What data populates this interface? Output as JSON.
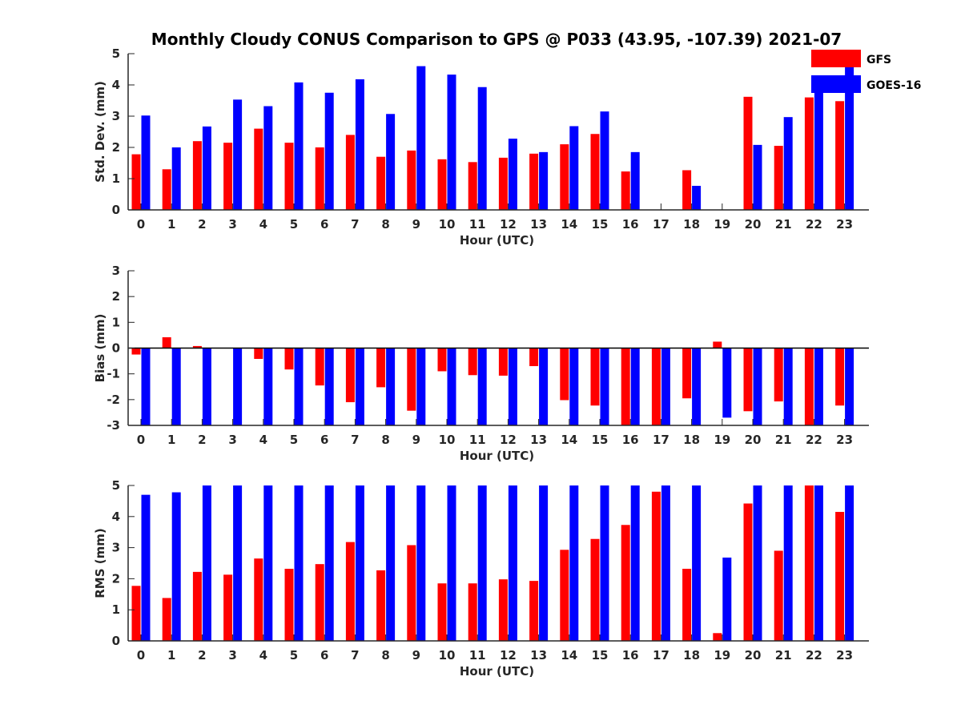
{
  "title": "Monthly Cloudy CONUS Comparison to GPS @ P033 (43.95, -107.39) 2021-07",
  "colors": {
    "GFS": "#ff0000",
    "GOES-16": "#0000ff"
  },
  "chart_data": [
    {
      "type": "bar",
      "id": "std",
      "categories": [
        "0",
        "1",
        "2",
        "3",
        "4",
        "5",
        "6",
        "7",
        "8",
        "9",
        "10",
        "11",
        "12",
        "13",
        "14",
        "15",
        "16",
        "17",
        "18",
        "19",
        "20",
        "21",
        "22",
        "23"
      ],
      "series": [
        {
          "name": "GFS",
          "values": [
            1.78,
            1.3,
            2.2,
            2.15,
            2.6,
            2.15,
            2.0,
            2.4,
            1.7,
            1.9,
            1.62,
            1.53,
            1.67,
            1.8,
            2.1,
            2.43,
            1.23,
            0,
            1.27,
            0,
            3.62,
            2.05,
            3.6,
            3.48
          ]
        },
        {
          "name": "GOES-16",
          "values": [
            3.02,
            2.0,
            2.67,
            3.53,
            3.32,
            4.08,
            3.75,
            4.18,
            3.07,
            4.6,
            4.33,
            3.93,
            2.28,
            1.85,
            2.68,
            3.15,
            1.85,
            0,
            0.77,
            0,
            2.08,
            2.97,
            3.97,
            4.6
          ]
        }
      ],
      "xlabel": "Hour (UTC)",
      "ylabel": "Std. Dev. (mm)",
      "ylim": [
        0,
        5
      ],
      "yticks": [
        "0",
        "1",
        "2",
        "3",
        "4",
        "5"
      ],
      "legend": {
        "placement": "top-right",
        "entries": [
          "GFS",
          "GOES-16"
        ]
      }
    },
    {
      "type": "bar",
      "id": "bias",
      "categories": [
        "0",
        "1",
        "2",
        "3",
        "4",
        "5",
        "6",
        "7",
        "8",
        "9",
        "10",
        "11",
        "12",
        "13",
        "14",
        "15",
        "16",
        "17",
        "18",
        "19",
        "20",
        "21",
        "22",
        "23"
      ],
      "series": [
        {
          "name": "GFS",
          "values": [
            -0.25,
            0.42,
            0.08,
            0,
            -0.42,
            -0.83,
            -1.45,
            -2.1,
            -1.52,
            -2.43,
            -0.9,
            -1.05,
            -1.07,
            -0.7,
            -2.02,
            -2.23,
            -3,
            -3,
            -1.95,
            0.25,
            -2.45,
            -2.07,
            -3,
            -2.23
          ]
        },
        {
          "name": "GOES-16",
          "values": [
            -3,
            -3,
            -3,
            -3,
            -3,
            -3,
            -3,
            -3,
            -3,
            -3,
            -3,
            -3,
            -3,
            -3,
            -3,
            -3,
            -3,
            -3,
            -3,
            -2.7,
            -3,
            -3,
            -3,
            -3
          ]
        }
      ],
      "xlabel": "Hour (UTC)",
      "ylabel": "Bias (mm)",
      "ylim": [
        -3,
        3
      ],
      "yticks": [
        "-3",
        "-2",
        "-1",
        "0",
        "1",
        "2",
        "3"
      ]
    },
    {
      "type": "bar",
      "id": "rms",
      "categories": [
        "0",
        "1",
        "2",
        "3",
        "4",
        "5",
        "6",
        "7",
        "8",
        "9",
        "10",
        "11",
        "12",
        "13",
        "14",
        "15",
        "16",
        "17",
        "18",
        "19",
        "20",
        "21",
        "22",
        "23"
      ],
      "series": [
        {
          "name": "GFS",
          "values": [
            1.77,
            1.38,
            2.22,
            2.13,
            2.65,
            2.32,
            2.47,
            3.18,
            2.27,
            3.08,
            1.85,
            1.85,
            1.98,
            1.93,
            2.93,
            3.28,
            3.73,
            4.8,
            2.32,
            0.25,
            4.42,
            2.9,
            5,
            4.15
          ]
        },
        {
          "name": "GOES-16",
          "values": [
            4.7,
            4.78,
            5,
            5,
            5,
            5,
            5,
            5,
            5,
            5,
            5,
            5,
            5,
            5,
            5,
            5,
            5,
            5,
            5,
            2.68,
            5,
            5,
            5,
            5
          ]
        }
      ],
      "xlabel": "Hour (UTC)",
      "ylabel": "RMS (mm)",
      "ylim": [
        0,
        5
      ],
      "yticks": [
        "0",
        "1",
        "2",
        "3",
        "4",
        "5"
      ]
    }
  ]
}
